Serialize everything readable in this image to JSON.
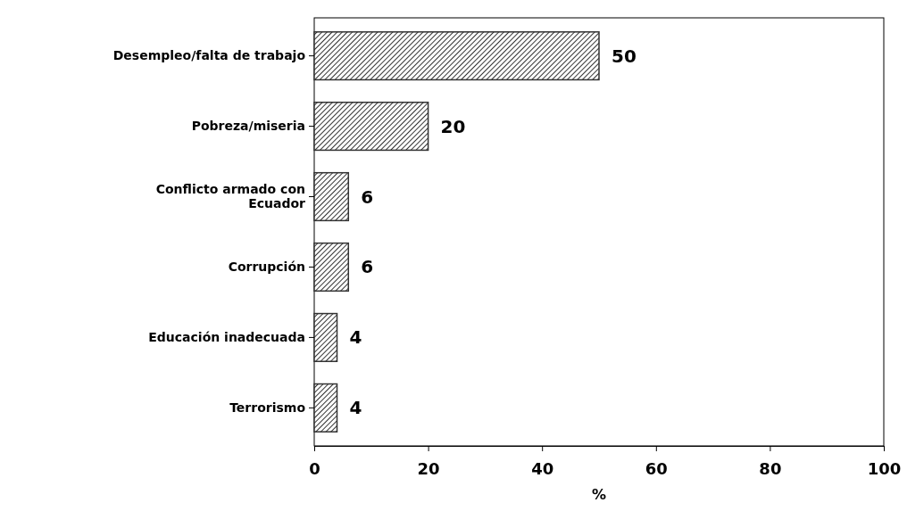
{
  "chart_data": {
    "type": "bar",
    "orientation": "horizontal",
    "categories": [
      "Desempleo/falta de trabajo",
      "Pobreza/miseria",
      "Conflicto armado con Ecuador",
      "Corrupción",
      "Educación inadecuada",
      "Terrorismo"
    ],
    "values": [
      50,
      20,
      6,
      6,
      4,
      4
    ],
    "color": "#333333",
    "xlim": [
      0,
      100
    ],
    "xticks": [
      0,
      20,
      40,
      60,
      80,
      100
    ],
    "xlabel": "%",
    "data_labels": true,
    "grid": false
  }
}
